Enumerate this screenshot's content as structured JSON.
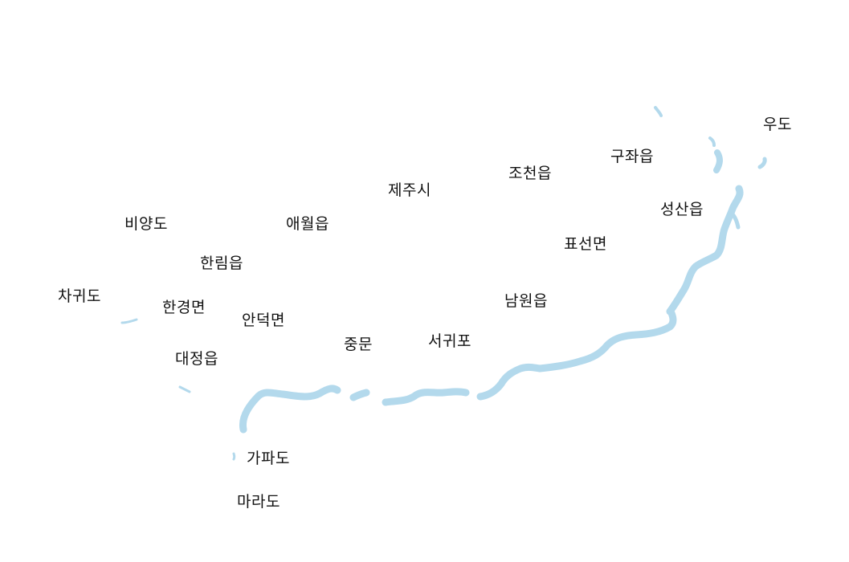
{
  "map": {
    "water_color": "#b3d9ec",
    "land_color": "#ffffff",
    "labels": {
      "udo": "우도",
      "gujwa": "구좌읍",
      "jocheon": "조천읍",
      "jeju_city": "제주시",
      "seongsan": "성산읍",
      "biyangdo": "비양도",
      "aewol": "애월읍",
      "pyoseon": "표선면",
      "hallim": "한림읍",
      "chagwido": "차귀도",
      "hangyeong": "한경면",
      "namwon": "남원읍",
      "andeok": "안덕면",
      "seogwipo": "서귀포",
      "jungmun": "중문",
      "daejeong": "대정읍",
      "gapado": "가파도",
      "marado": "마라도"
    }
  }
}
